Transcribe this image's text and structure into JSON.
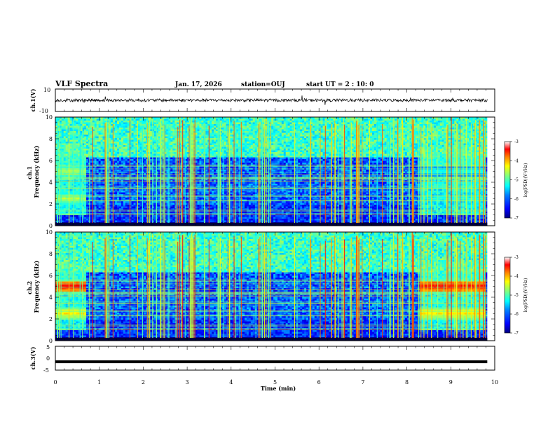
{
  "header": {
    "title": "VLF Spectra",
    "date": "Jan. 17, 2026",
    "station": "station=OUJ",
    "start": "start UT =  2 : 10: 0"
  },
  "chart_data": [
    {
      "type": "line",
      "panel": "ch1-waveform",
      "ylabel": "ch.1(V)",
      "ylim": [
        -10,
        10
      ],
      "yticks": [
        "10",
        "-10"
      ],
      "baseline": 0,
      "trace_color": "#000000"
    },
    {
      "type": "heatmap",
      "panel": "ch1-spectrogram",
      "ylabel": "ch.1 Frequency (kHz)",
      "ylim": [
        0,
        10
      ],
      "yticks": [
        "0",
        "2",
        "4",
        "6",
        "8",
        "10"
      ],
      "features": [
        {
          "f_khz": 5.0,
          "x_min": [
            0,
            0.7
          ],
          "level": "high"
        },
        {
          "f_khz": 2.5,
          "x_min": [
            0,
            0.7
          ],
          "level": "high"
        },
        {
          "f_khz": 5.0,
          "x_min": [
            8.3,
            9.8
          ],
          "level": "medium"
        },
        {
          "f_khz": 2.5,
          "x_min": [
            8.3,
            9.8
          ],
          "level": "medium"
        }
      ],
      "colorbar": {
        "label": "log(PSD)(V²/Hz)",
        "range": [
          -7,
          -3
        ],
        "ticks": [
          "-3",
          "-4",
          "-5",
          "-6",
          "-7"
        ]
      }
    },
    {
      "type": "heatmap",
      "panel": "ch2-spectrogram",
      "ylabel": "ch.2 Frequency (kHz)",
      "ylim": [
        0,
        10
      ],
      "yticks": [
        "0",
        "2",
        "4",
        "6",
        "8",
        "10"
      ],
      "features": [
        {
          "f_khz": 5.0,
          "x_min": [
            0,
            0.7
          ],
          "level": "very-high"
        },
        {
          "f_khz": 2.5,
          "x_min": [
            0,
            0.7
          ],
          "level": "high"
        },
        {
          "f_khz": 5.0,
          "x_min": [
            8.3,
            9.8
          ],
          "level": "very-high"
        },
        {
          "f_khz": 2.5,
          "x_min": [
            8.3,
            9.8
          ],
          "level": "high"
        }
      ],
      "colorbar": {
        "label": "log(PSD)(V²/Hz)",
        "range": [
          -7,
          -3
        ],
        "ticks": [
          "-3",
          "-4",
          "-5",
          "-6",
          "-7"
        ]
      }
    },
    {
      "type": "line",
      "panel": "ch3-waveform",
      "ylabel": "ch.3(V)",
      "ylim": [
        -5,
        5
      ],
      "yticks": [
        "5",
        "0",
        "-5"
      ],
      "baseline": -1.5,
      "trace_color": "#000000"
    }
  ],
  "xaxis": {
    "label": "Time (min)",
    "range": [
      0,
      10
    ],
    "ticks": [
      "0",
      "1",
      "2",
      "3",
      "4",
      "5",
      "6",
      "7",
      "8",
      "9",
      "10"
    ],
    "data_end": 9.83
  },
  "colors": {
    "colormap": [
      "#00007f",
      "#0000ff",
      "#0080ff",
      "#00ffff",
      "#80ff80",
      "#ffff00",
      "#ff8000",
      "#ff0000",
      "#ffffff"
    ]
  }
}
